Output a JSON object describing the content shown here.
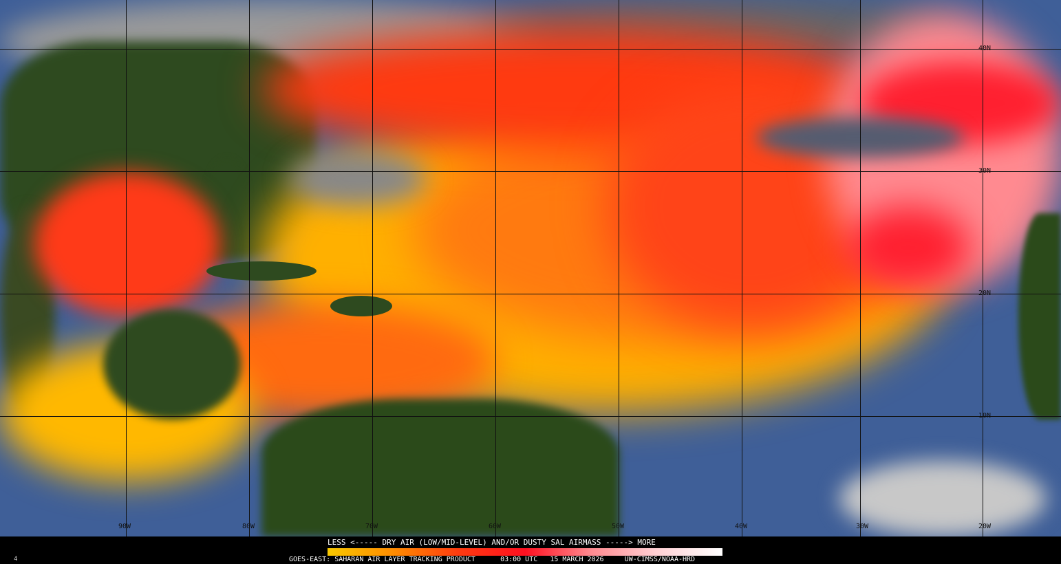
{
  "legend": {
    "title": "LESS <----- DRY AIR (LOW/MID-LEVEL) AND/OR DUSTY SAL AIRMASS -----> MORE",
    "colors": [
      "#f8c800",
      "#ff8c00",
      "#ff3a10",
      "#ff1020",
      "#ff8a90",
      "#ffd0d4",
      "#ffffff"
    ]
  },
  "footer": {
    "product": "GOES-EAST: SAHARAN AIR LAYER TRACKING PRODUCT",
    "time": "03:00 UTC",
    "date": "15 MARCH 2026",
    "credit": "UW-CIMSS/NOAA-HRD",
    "frame": "4"
  },
  "grid": {
    "longitudes": [
      "90W",
      "80W",
      "70W",
      "60W",
      "50W",
      "40W",
      "30W",
      "20W"
    ],
    "latitudes": [
      "40N",
      "30N",
      "20N",
      "10N"
    ]
  },
  "colors": {
    "ocean": "#3f5f98",
    "land": "#2f4a1c",
    "cloud": "#b8b8b8",
    "sal_low": "#f8c800",
    "sal_mid": "#ff5a10",
    "sal_high": "#ff9aa0"
  }
}
